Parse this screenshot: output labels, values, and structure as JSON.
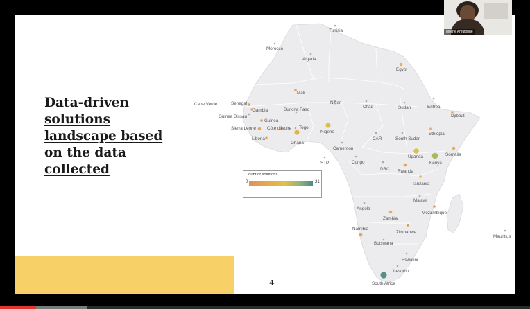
{
  "slide": {
    "title": "Data-driven solutions landscape based on the data collected",
    "page_number": "4",
    "accent_color": "#f7d168"
  },
  "legend": {
    "title": "Count of solutions",
    "min": "0",
    "max": "21",
    "colors": [
      "#e0925a",
      "#e3c046",
      "#8fb27e",
      "#4f8b84"
    ]
  },
  "map_labels": {
    "tunisia": "Tunisia",
    "morocco": "Morocco",
    "algeria": "Algeria",
    "egypt": "Egypt",
    "mali": "Mali",
    "cape_verde": "Cape Verde",
    "senegal": "Senegal",
    "gambia": "Gambia",
    "guinea_bissau": "Guinea Bissau",
    "guinea": "Guinea",
    "sierra_leone": "Sierra Leone",
    "cote_divoire": "Côte d'Ivoire",
    "burkina_faso": "Burkina Faso",
    "togo": "Togo",
    "liberia": "Liberia",
    "ghana": "Ghana",
    "niger": "Niger",
    "nigeria": "Nigeria",
    "chad": "Chad",
    "sudan": "Sudan",
    "eritrea": "Eritrea",
    "djibouti": "Djibouti",
    "ethiopia": "Ethiopia",
    "south_sudan": "South Sudan",
    "car": "CAR",
    "cameroon": "Cameroon",
    "somalia": "Somalia",
    "uganda": "Uganda",
    "kenya": "Kenya",
    "congo": "Congo",
    "drc": "DRC",
    "stp": "STP",
    "rwanda": "Rwanda",
    "tanzania": "Tanzania",
    "malawi": "Malawi",
    "angola": "Angola",
    "zambia": "Zambia",
    "mozambique": "Mozambique",
    "namibia": "Namibia",
    "zimbabwe": "Zimbabwe",
    "botswana": "Botswana",
    "mauritius": "Mauritius",
    "eswatini": "Eswatini",
    "lesotho": "Lesotho",
    "south_africa": "South Africa"
  },
  "webcam": {
    "participant_name": "Moline Amutorine"
  },
  "video_progress": {
    "played_fraction": 0.068,
    "buffered_fraction": 0.165
  }
}
